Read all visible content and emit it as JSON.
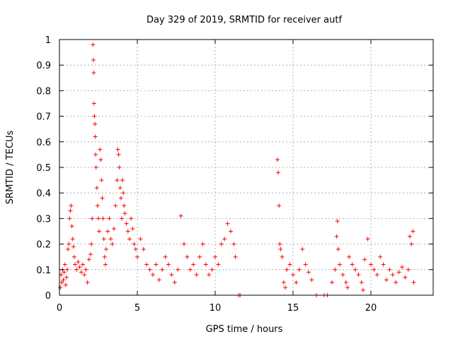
{
  "chart_data": {
    "type": "scatter",
    "title": "Day 329 of 2019, SRMTID for receiver autf",
    "xlabel": "GPS time / hours",
    "ylabel": "SRMTID / TECUs",
    "xlim": [
      0,
      24
    ],
    "ylim": [
      0,
      1
    ],
    "grid": true,
    "marker": "+",
    "color": "#ff0000",
    "x_ticks": [
      0,
      5,
      10,
      15,
      20
    ],
    "x_tick_labels": [
      "0",
      "5",
      "10",
      "15",
      "20"
    ],
    "y_ticks": [
      0,
      0.1,
      0.2,
      0.3,
      0.4,
      0.5,
      0.6,
      0.7,
      0.8,
      0.9,
      1
    ],
    "y_tick_labels": [
      "0",
      "0.1",
      "0.2",
      "0.3",
      "0.4",
      "0.5",
      "0.6",
      "0.7",
      "0.8",
      "0.9",
      "1"
    ],
    "points": [
      [
        0.05,
        0.03
      ],
      [
        0.1,
        0.08
      ],
      [
        0.15,
        0.05
      ],
      [
        0.2,
        0.1
      ],
      [
        0.25,
        0.06
      ],
      [
        0.3,
        0.09
      ],
      [
        0.35,
        0.12
      ],
      [
        0.4,
        0.04
      ],
      [
        0.45,
        0.07
      ],
      [
        0.5,
        0.1
      ],
      [
        0.55,
        0.18
      ],
      [
        0.6,
        0.2
      ],
      [
        0.65,
        0.3
      ],
      [
        0.7,
        0.33
      ],
      [
        0.75,
        0.35
      ],
      [
        0.8,
        0.27
      ],
      [
        0.85,
        0.22
      ],
      [
        0.9,
        0.19
      ],
      [
        0.95,
        0.15
      ],
      [
        1.0,
        0.12
      ],
      [
        1.1,
        0.1
      ],
      [
        1.2,
        0.13
      ],
      [
        1.3,
        0.11
      ],
      [
        1.4,
        0.09
      ],
      [
        1.5,
        0.12
      ],
      [
        1.6,
        0.08
      ],
      [
        1.7,
        0.1
      ],
      [
        1.8,
        0.05
      ],
      [
        1.9,
        0.14
      ],
      [
        2.0,
        0.16
      ],
      [
        2.05,
        0.2
      ],
      [
        2.1,
        0.3
      ],
      [
        2.15,
        0.98
      ],
      [
        2.18,
        0.92
      ],
      [
        2.2,
        0.87
      ],
      [
        2.22,
        0.75
      ],
      [
        2.25,
        0.7
      ],
      [
        2.28,
        0.67
      ],
      [
        2.3,
        0.62
      ],
      [
        2.32,
        0.55
      ],
      [
        2.35,
        0.5
      ],
      [
        2.4,
        0.42
      ],
      [
        2.45,
        0.35
      ],
      [
        2.5,
        0.3
      ],
      [
        2.55,
        0.25
      ],
      [
        2.6,
        0.57
      ],
      [
        2.65,
        0.53
      ],
      [
        2.7,
        0.45
      ],
      [
        2.75,
        0.38
      ],
      [
        2.8,
        0.3
      ],
      [
        2.85,
        0.22
      ],
      [
        2.9,
        0.15
      ],
      [
        2.95,
        0.12
      ],
      [
        3.0,
        0.18
      ],
      [
        3.1,
        0.25
      ],
      [
        3.2,
        0.3
      ],
      [
        3.3,
        0.22
      ],
      [
        3.4,
        0.2
      ],
      [
        3.5,
        0.26
      ],
      [
        3.6,
        0.35
      ],
      [
        3.7,
        0.45
      ],
      [
        3.75,
        0.57
      ],
      [
        3.8,
        0.55
      ],
      [
        3.85,
        0.5
      ],
      [
        3.9,
        0.42
      ],
      [
        3.95,
        0.38
      ],
      [
        4.0,
        0.3
      ],
      [
        4.05,
        0.45
      ],
      [
        4.1,
        0.4
      ],
      [
        4.15,
        0.35
      ],
      [
        4.2,
        0.32
      ],
      [
        4.3,
        0.28
      ],
      [
        4.4,
        0.25
      ],
      [
        4.5,
        0.22
      ],
      [
        4.6,
        0.3
      ],
      [
        4.7,
        0.26
      ],
      [
        4.8,
        0.2
      ],
      [
        4.9,
        0.18
      ],
      [
        5.0,
        0.15
      ],
      [
        5.2,
        0.22
      ],
      [
        5.4,
        0.18
      ],
      [
        5.6,
        0.12
      ],
      [
        5.8,
        0.1
      ],
      [
        6.0,
        0.08
      ],
      [
        6.2,
        0.12
      ],
      [
        6.4,
        0.06
      ],
      [
        6.6,
        0.1
      ],
      [
        6.8,
        0.15
      ],
      [
        7.0,
        0.12
      ],
      [
        7.2,
        0.08
      ],
      [
        7.4,
        0.05
      ],
      [
        7.6,
        0.1
      ],
      [
        7.8,
        0.31
      ],
      [
        8.0,
        0.2
      ],
      [
        8.2,
        0.15
      ],
      [
        8.4,
        0.1
      ],
      [
        8.6,
        0.12
      ],
      [
        8.8,
        0.08
      ],
      [
        9.0,
        0.15
      ],
      [
        9.2,
        0.2
      ],
      [
        9.4,
        0.12
      ],
      [
        9.6,
        0.08
      ],
      [
        9.8,
        0.1
      ],
      [
        10.0,
        0.15
      ],
      [
        10.2,
        0.12
      ],
      [
        10.4,
        0.2
      ],
      [
        10.6,
        0.22
      ],
      [
        10.8,
        0.28
      ],
      [
        11.0,
        0.25
      ],
      [
        11.2,
        0.2
      ],
      [
        11.3,
        0.15
      ],
      [
        11.5,
        0
      ],
      [
        11.6,
        0
      ],
      [
        14.0,
        0.53
      ],
      [
        14.05,
        0.48
      ],
      [
        14.1,
        0.35
      ],
      [
        14.15,
        0.2
      ],
      [
        14.2,
        0.18
      ],
      [
        14.3,
        0.15
      ],
      [
        14.4,
        0.05
      ],
      [
        14.5,
        0.03
      ],
      [
        14.6,
        0.1
      ],
      [
        14.8,
        0.12
      ],
      [
        15.0,
        0.08
      ],
      [
        15.2,
        0.05
      ],
      [
        15.4,
        0.1
      ],
      [
        15.6,
        0.18
      ],
      [
        15.8,
        0.12
      ],
      [
        16.0,
        0.09
      ],
      [
        16.2,
        0.06
      ],
      [
        16.5,
        0
      ],
      [
        17.0,
        0
      ],
      [
        17.2,
        0
      ],
      [
        17.5,
        0.05
      ],
      [
        17.7,
        0.1
      ],
      [
        17.8,
        0.23
      ],
      [
        17.85,
        0.29
      ],
      [
        17.9,
        0.18
      ],
      [
        18.0,
        0.12
      ],
      [
        18.2,
        0.08
      ],
      [
        18.4,
        0.05
      ],
      [
        18.5,
        0.03
      ],
      [
        18.6,
        0.15
      ],
      [
        18.8,
        0.12
      ],
      [
        19.0,
        0.1
      ],
      [
        19.2,
        0.08
      ],
      [
        19.4,
        0.05
      ],
      [
        19.5,
        0.02
      ],
      [
        19.6,
        0.14
      ],
      [
        19.8,
        0.22
      ],
      [
        20.0,
        0.12
      ],
      [
        20.2,
        0.1
      ],
      [
        20.4,
        0.08
      ],
      [
        20.6,
        0.15
      ],
      [
        20.8,
        0.12
      ],
      [
        21.0,
        0.06
      ],
      [
        21.2,
        0.1
      ],
      [
        21.4,
        0.08
      ],
      [
        21.6,
        0.05
      ],
      [
        21.8,
        0.09
      ],
      [
        22.0,
        0.11
      ],
      [
        22.2,
        0.07
      ],
      [
        22.4,
        0.1
      ],
      [
        22.5,
        0.23
      ],
      [
        22.6,
        0.2
      ],
      [
        22.7,
        0.25
      ],
      [
        22.75,
        0.05
      ]
    ]
  }
}
